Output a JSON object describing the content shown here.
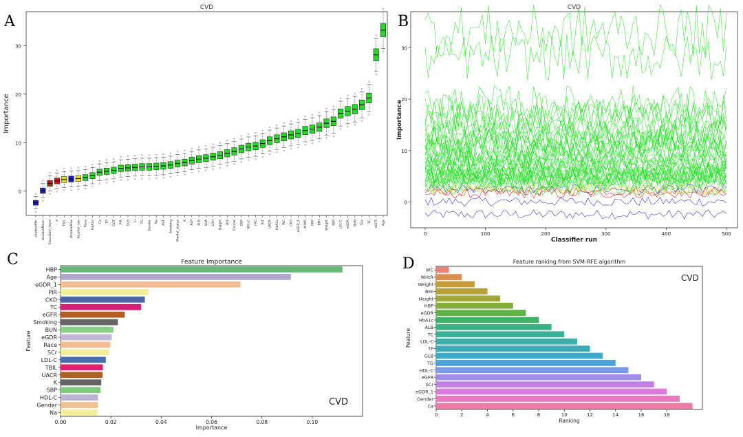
{
  "chart_data": [
    {
      "panel": "A",
      "type": "box",
      "title": "CVD",
      "ylabel": "Importance",
      "xlabel": "",
      "ylim": [
        -5,
        37
      ],
      "yticks": [
        0,
        10,
        20,
        30
      ],
      "grid": false,
      "colors": {
        "shadow": "#1f1fc8",
        "rejected": "#e01010",
        "tentative": "#f0e020",
        "confirmed": "#22dd22"
      },
      "categories": [
        "shadowMin",
        "shadowMean",
        "Education_level",
        "P",
        "TBIL",
        "shadowMax",
        "Alcohol_use",
        "Race",
        "HbA1c",
        "Ca",
        "TP",
        "GGT",
        "PIR",
        "GLB",
        "Cl",
        "TG",
        "Gender",
        "Na",
        "AST",
        "Smoking",
        "Marital_status",
        "K",
        "ALP",
        "ALB",
        "SUA",
        "LDH",
        "Height",
        "ALT",
        "Cancer",
        "DBP",
        "HDL-C",
        "FPG",
        "PLT",
        "UACR",
        "HbA1c",
        "WC",
        "CKD",
        "eGDR_1",
        "WHtR",
        "HBP",
        "BMI",
        "Weight",
        "SBP",
        "LDL-C",
        "eGDR",
        "BUN",
        "SCr",
        "TC",
        "eGFR",
        "Age"
      ],
      "status": [
        "shadow",
        "shadow",
        "rejected",
        "rejected",
        "tentative",
        "shadow",
        "tentative",
        "confirmed",
        "confirmed",
        "confirmed",
        "confirmed",
        "confirmed",
        "confirmed",
        "confirmed",
        "confirmed",
        "confirmed",
        "confirmed",
        "confirmed",
        "confirmed",
        "confirmed",
        "confirmed",
        "confirmed",
        "confirmed",
        "confirmed",
        "confirmed",
        "confirmed",
        "confirmed",
        "confirmed",
        "confirmed",
        "confirmed",
        "confirmed",
        "confirmed",
        "confirmed",
        "confirmed",
        "confirmed",
        "confirmed",
        "confirmed",
        "confirmed",
        "confirmed",
        "confirmed",
        "confirmed",
        "confirmed",
        "confirmed",
        "confirmed",
        "confirmed",
        "confirmed",
        "confirmed",
        "confirmed",
        "confirmed",
        "confirmed"
      ],
      "medians": [
        -2.4,
        0.1,
        1.6,
        2.1,
        2.4,
        2.5,
        2.6,
        2.8,
        3.2,
        3.9,
        4.1,
        4.3,
        4.7,
        4.8,
        4.9,
        5.0,
        5.0,
        5.1,
        5.2,
        5.4,
        5.7,
        5.9,
        6.3,
        6.6,
        6.8,
        7.1,
        7.4,
        7.8,
        8.2,
        8.7,
        9.1,
        9.3,
        9.8,
        10.4,
        10.8,
        11.2,
        11.6,
        11.9,
        12.5,
        12.8,
        13.2,
        14.0,
        14.4,
        16.0,
        16.5,
        16.9,
        17.8,
        19.2,
        28.1,
        33.2
      ]
    },
    {
      "panel": "B",
      "type": "line",
      "title": "CVD",
      "xlabel": "Classifier run",
      "ylabel": "Importance",
      "xlim": [
        0,
        500
      ],
      "ylim": [
        -5,
        37
      ],
      "xticks": [
        0,
        100,
        200,
        300,
        400,
        500
      ],
      "yticks": [
        0,
        10,
        20,
        30
      ],
      "colors": {
        "confirmed": "#22dd22",
        "shadow": "#1f1fc8",
        "rejected": "#e01010",
        "tentative": "#f0e020"
      },
      "n_runs": 500
    },
    {
      "panel": "C",
      "type": "bar",
      "orientation": "horizontal",
      "title": "Feature Importance",
      "xlabel": "Importance",
      "ylabel": "Feature",
      "annotation": "CVD",
      "xlim": [
        0,
        0.12
      ],
      "xticks": [
        0.0,
        0.02,
        0.04,
        0.06,
        0.08,
        0.1
      ],
      "xtick_labels": [
        "0.00",
        "0.02",
        "0.04",
        "0.06",
        "0.08",
        "0.10"
      ],
      "categories": [
        "HBP",
        "Age",
        "eGDR_1",
        "PIR",
        "CKD",
        "TC",
        "eGFR",
        "Smoking",
        "BUN",
        "eGDR",
        "Race",
        "SCr",
        "LDL-C",
        "TBIL",
        "UACR",
        "K",
        "SBP",
        "HDL-C",
        "Gender",
        "Na"
      ],
      "values": [
        0.112,
        0.0915,
        0.0715,
        0.035,
        0.0335,
        0.032,
        0.0255,
        0.0228,
        0.021,
        0.0203,
        0.0198,
        0.0193,
        0.018,
        0.0168,
        0.0167,
        0.0162,
        0.0159,
        0.0149,
        0.0148,
        0.0147
      ],
      "colors": [
        "#6ab97a",
        "#b3a6cc",
        "#efbe96",
        "#f1ef9a",
        "#4a66a8",
        "#d41f76",
        "#b15e22",
        "#676767",
        "#8ccf88",
        "#c3b6d6",
        "#f0be92",
        "#f0ee9c",
        "#4a6fb0",
        "#e0206f",
        "#b15e22",
        "#646464",
        "#81c77e",
        "#bdb2d6",
        "#f0c196",
        "#f1ef9a"
      ]
    },
    {
      "panel": "D",
      "type": "bar",
      "orientation": "horizontal",
      "title": "Feature ranking from SVM-RFE algorithm",
      "xlabel": "Ranking",
      "ylabel": "Feature",
      "annotation": "CVD",
      "xlim": [
        0,
        20
      ],
      "xticks": [
        0,
        2,
        4,
        6,
        8,
        10,
        12,
        14,
        16,
        18
      ],
      "categories": [
        "WC",
        "WHtR",
        "Weight",
        "BMI",
        "Height",
        "HBP",
        "eGDR",
        "HbA1c",
        "ALB",
        "TC",
        "LDL-C",
        "TP",
        "GLB",
        "TG",
        "HDL-C",
        "eGFR",
        "SCr",
        "eGDR_1",
        "Gender",
        "Ca"
      ],
      "values": [
        1,
        2,
        3,
        4,
        5,
        6,
        7,
        8,
        9,
        10,
        11,
        12,
        13,
        14,
        15,
        16,
        17,
        18,
        19,
        20
      ],
      "colors": [
        "#e98378",
        "#dc8e52",
        "#c99a3a",
        "#b6a23a",
        "#a0a83a",
        "#86ad3a",
        "#5fb245",
        "#3cb464",
        "#37b384",
        "#38b196",
        "#3aafa7",
        "#3cadb8",
        "#3ea9cb",
        "#4aa2dd",
        "#799ae8",
        "#a18cea",
        "#c27fe6",
        "#d97bd8",
        "#e679c0",
        "#ec7ba7"
      ]
    }
  ],
  "labels": {
    "panel_a": "A",
    "panel_b": "B",
    "panel_c": "C",
    "panel_d": "D"
  }
}
